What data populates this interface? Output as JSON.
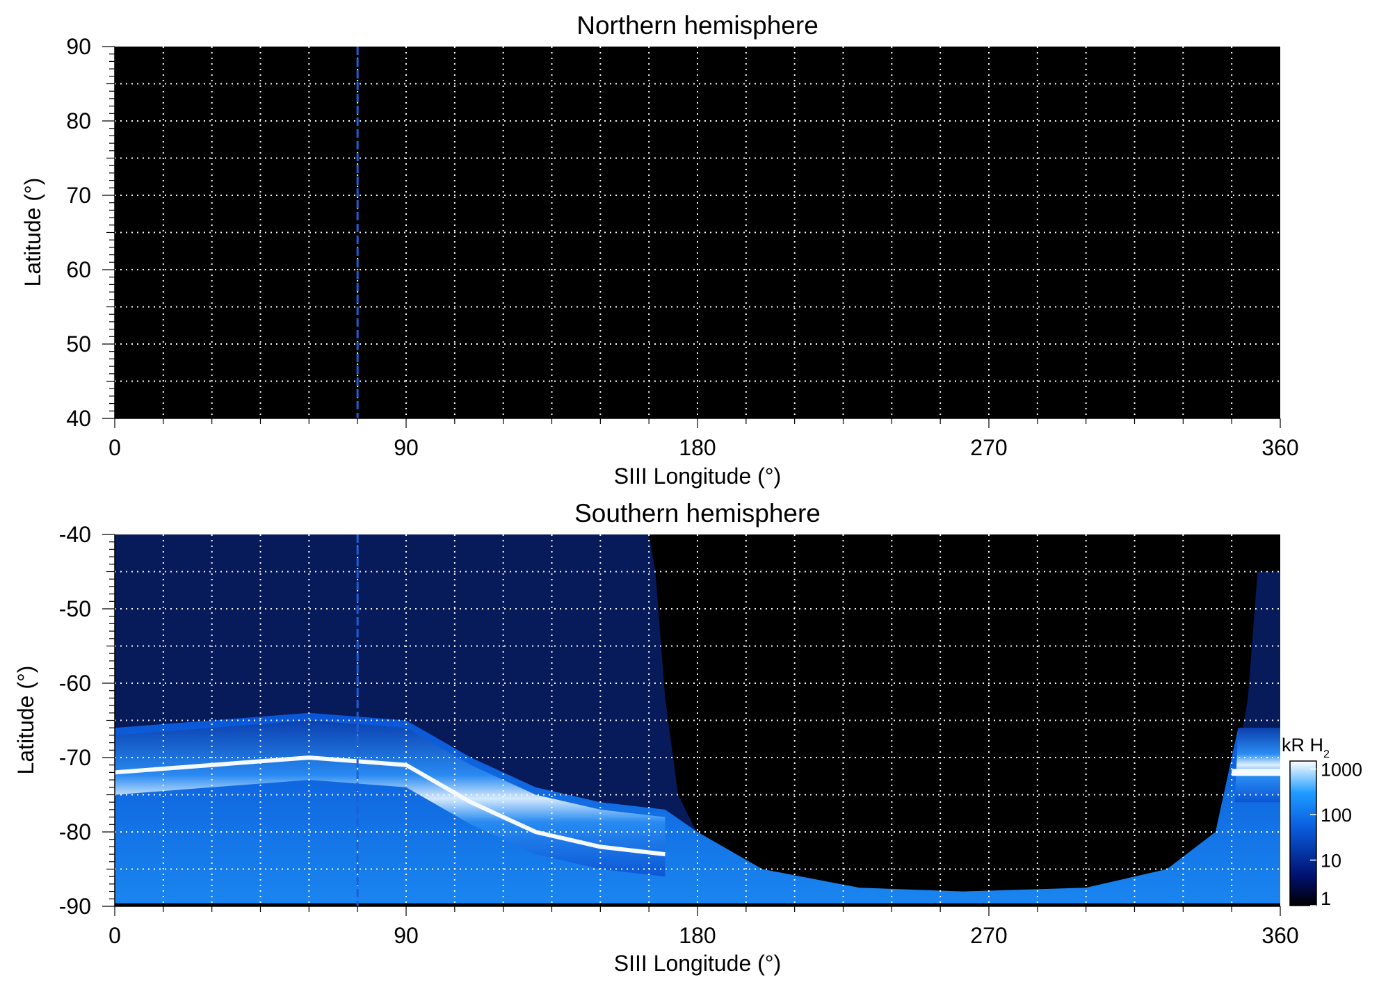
{
  "chart_data": [
    {
      "type": "heatmap",
      "title": "Northern hemisphere",
      "xlabel": "SIII Longitude (°)",
      "ylabel": "Latitude (°)",
      "xlim": [
        0,
        360
      ],
      "ylim": [
        40,
        90
      ],
      "x_ticks": [
        "0",
        "90",
        "180",
        "270",
        "360"
      ],
      "y_ticks": [
        "40",
        "50",
        "60",
        "70",
        "80",
        "90"
      ],
      "grid": true,
      "background": "#000000",
      "marker_longitude": 75,
      "marker_color": "#1f5fd6",
      "description_values": "no auroral emission visible (all black)"
    },
    {
      "type": "heatmap",
      "title": "Southern hemisphere",
      "xlabel": "SIII Longitude (°)",
      "ylabel": "Latitude (°)",
      "xlim": [
        0,
        360
      ],
      "ylim": [
        -90,
        -40
      ],
      "x_ticks": [
        "0",
        "90",
        "180",
        "270",
        "360"
      ],
      "y_ticks": [
        "-90",
        "-80",
        "-70",
        "-60",
        "-50",
        "-40"
      ],
      "grid": true,
      "marker_longitude": 75,
      "oval_center_latitude": [
        {
          "lon": 0,
          "lat": -72
        },
        {
          "lon": 30,
          "lat": -71
        },
        {
          "lon": 60,
          "lat": -70
        },
        {
          "lon": 90,
          "lat": -71
        },
        {
          "lon": 110,
          "lat": -76
        },
        {
          "lon": 130,
          "lat": -80
        },
        {
          "lon": 150,
          "lat": -82
        },
        {
          "lon": 170,
          "lat": -83
        },
        {
          "lon": 345,
          "lat": -72
        },
        {
          "lon": 360,
          "lat": -72
        }
      ],
      "colorbar": {
        "label": "kR H",
        "label_sub": "2",
        "scale": "log",
        "ticks": [
          "1",
          "10",
          "100",
          "1000"
        ],
        "tick_values": [
          1,
          10,
          100,
          1000
        ],
        "colors": [
          "#000000",
          "#00106e",
          "#0a5fe0",
          "#1f9cff",
          "#ffffff"
        ]
      }
    }
  ]
}
